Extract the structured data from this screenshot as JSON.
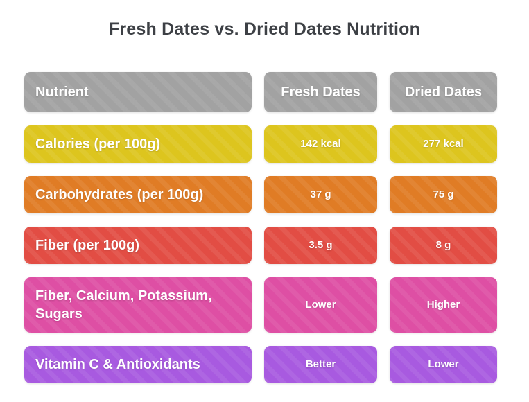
{
  "title": "Fresh Dates vs. Dried Dates Nutrition",
  "colors": {
    "title_text": "#3d4045",
    "cell_text": "#ffffff",
    "background": "#ffffff",
    "header": "#a2a2a2",
    "rows": [
      "#ddc51e",
      "#e07c25",
      "#e24d44",
      "#de4fa4",
      "#a85ae0"
    ]
  },
  "chart_data": {
    "type": "table",
    "title": "Fresh Dates vs. Dried Dates Nutrition",
    "columns": [
      "Nutrient",
      "Fresh Dates",
      "Dried Dates"
    ],
    "rows": [
      [
        "Calories (per 100g)",
        "142 kcal",
        "277 kcal"
      ],
      [
        "Carbohydrates (per 100g)",
        "37 g",
        "75 g"
      ],
      [
        "Fiber (per 100g)",
        "3.5 g",
        "8 g"
      ],
      [
        "Fiber, Calcium, Potassium, Sugars",
        "Lower",
        "Higher"
      ],
      [
        "Vitamin C & Antioxidants",
        "Better",
        "Lower"
      ]
    ],
    "legend_position": "none",
    "grid": false
  }
}
